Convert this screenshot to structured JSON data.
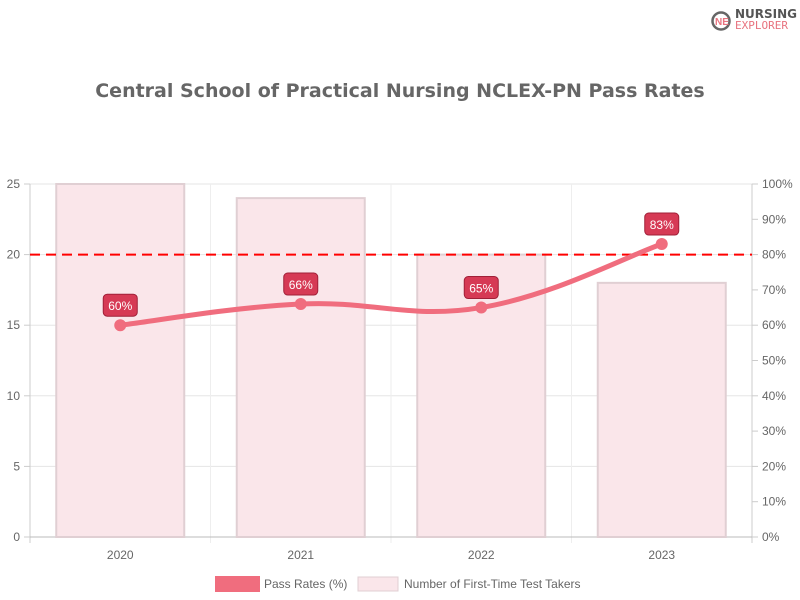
{
  "logo": {
    "line1": "NURSING",
    "line2": "EXPLORER"
  },
  "chart_data": {
    "type": "bar",
    "title": "Central School of Practical Nursing NCLEX-PN Pass Rates",
    "categories": [
      "2020",
      "2021",
      "2022",
      "2023"
    ],
    "series": [
      {
        "name": "Pass Rates (%)",
        "type": "line",
        "axis": "right",
        "values": [
          60,
          66,
          65,
          83
        ],
        "labels": [
          "60%",
          "66%",
          "65%",
          "83%"
        ],
        "color": "#f06d7e"
      },
      {
        "name": "Number of First-Time Test Takers",
        "type": "bar",
        "axis": "left",
        "values": [
          25,
          24,
          20,
          18
        ],
        "color": "#fae6ea"
      }
    ],
    "ylim_left": [
      0,
      25
    ],
    "yticks_left": [
      "0",
      "5",
      "10",
      "15",
      "20",
      "25"
    ],
    "ylim_right": [
      0,
      100
    ],
    "yticks_right": [
      "0%",
      "10%",
      "20%",
      "30%",
      "40%",
      "50%",
      "60%",
      "70%",
      "80%",
      "90%",
      "100%"
    ],
    "reference_line": {
      "value": 80,
      "axis": "right",
      "style": "dashed",
      "color": "#ff0000"
    },
    "grid": true,
    "legend": "bottom"
  }
}
